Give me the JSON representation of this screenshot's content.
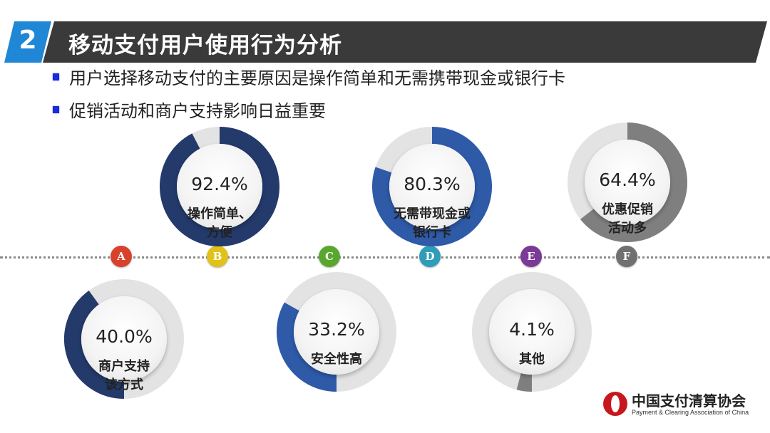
{
  "title": {
    "number": "2",
    "text": "移动支付用户使用行为分析"
  },
  "bullets": [
    "用户选择移动支付的主要原因是操作简单和无需携带现金或银行卡",
    "促销活动和商户支持影响日益重要"
  ],
  "markers": [
    {
      "letter": "A",
      "color": "#d9422a"
    },
    {
      "letter": "B",
      "color": "#e2c218"
    },
    {
      "letter": "C",
      "color": "#5aa72f"
    },
    {
      "letter": "D",
      "color": "#2f9db8"
    },
    {
      "letter": "E",
      "color": "#7a3a96"
    },
    {
      "letter": "F",
      "color": "#707070"
    }
  ],
  "reasons": [
    {
      "value": "92.4%",
      "fraction": 0.924,
      "label_lines": [
        "操作简单、",
        "方便"
      ],
      "color": "#233a6b"
    },
    {
      "value": "80.3%",
      "fraction": 0.803,
      "label_lines": [
        "无需带现金或",
        "银行卡"
      ],
      "color": "#2e5aa8"
    },
    {
      "value": "64.4%",
      "fraction": 0.644,
      "label_lines": [
        "优惠促销",
        "活动多"
      ],
      "color": "#7f7f7f"
    },
    {
      "value": "40.0%",
      "fraction": 0.4,
      "label_lines": [
        "商户支持",
        "该方式"
      ],
      "color": "#233a6b"
    },
    {
      "value": "33.2%",
      "fraction": 0.332,
      "label_lines": [
        "安全性高"
      ],
      "color": "#2e5aa8"
    },
    {
      "value": "4.1%",
      "fraction": 0.041,
      "label_lines": [
        "其他"
      ],
      "color": "#7f7f7f"
    }
  ],
  "logo": {
    "name": "中国支付清算协会",
    "english": "Payment & Clearing Association of China",
    "color": "#c8161d"
  }
}
